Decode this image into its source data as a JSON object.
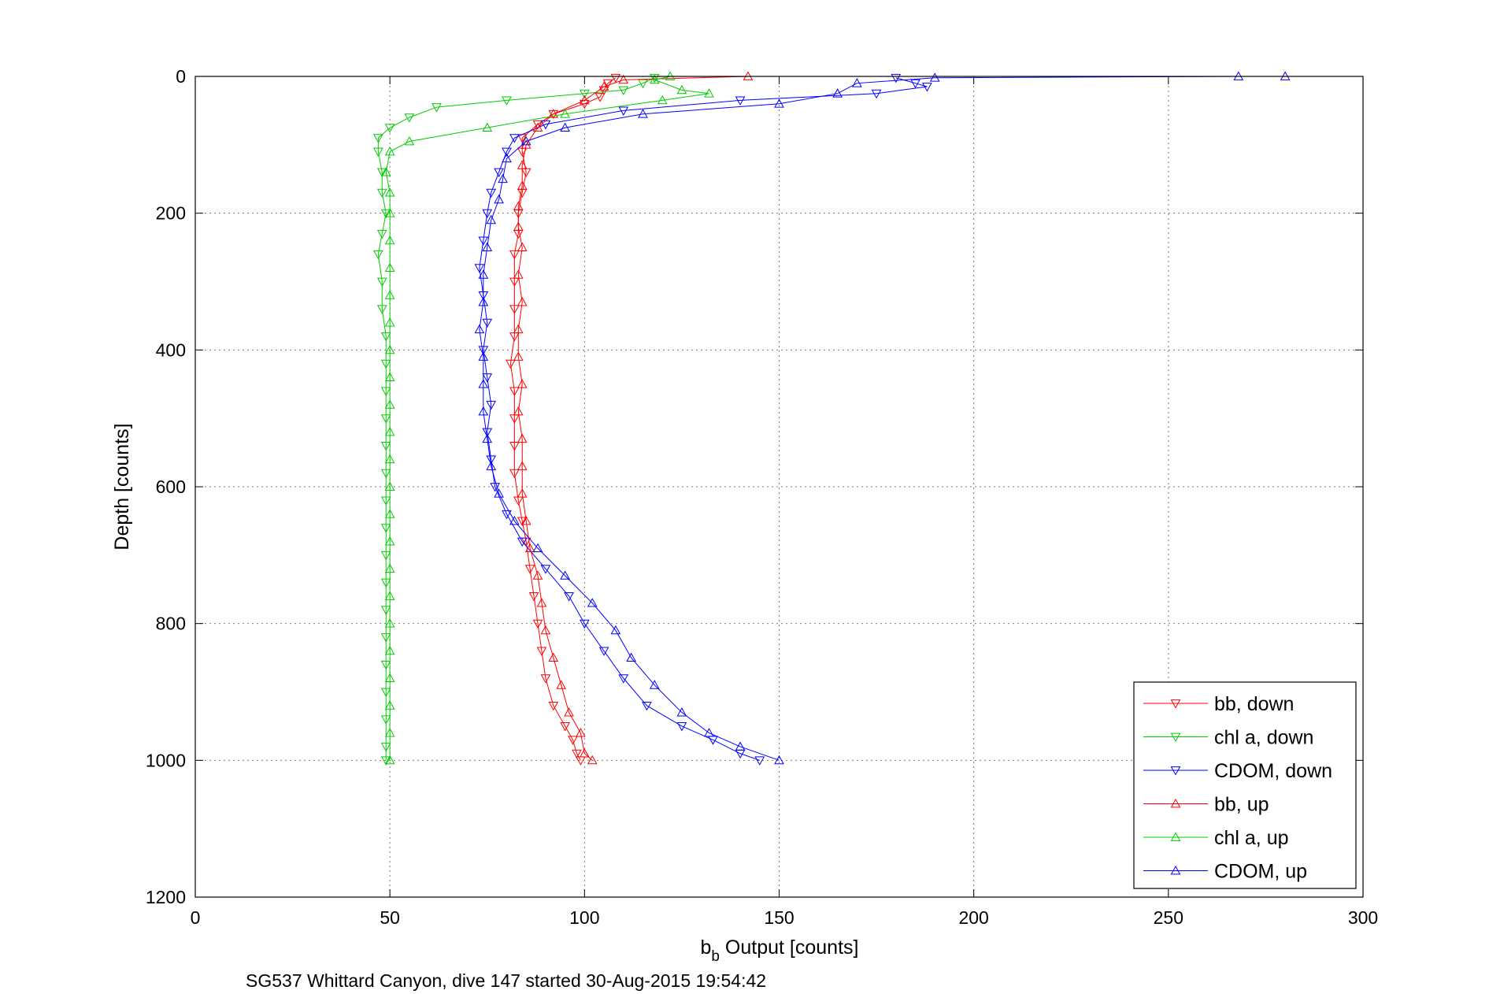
{
  "chart_data": {
    "type": "scatter",
    "xlabel_main": "b",
    "xlabel_sub": "b",
    "xlabel_rest": " Output [counts]",
    "ylabel": "Depth [counts]",
    "caption": "SG537 Whittard Canyon, dive 147 started 30-Aug-2015 19:54:42",
    "xlim": [
      0,
      300
    ],
    "ylim": [
      0,
      1200
    ],
    "y_reversed": true,
    "grid": true,
    "legend_position": "bottom-right",
    "x_ticks": [
      "0",
      "50",
      "100",
      "150",
      "200",
      "250",
      "300"
    ],
    "y_ticks": [
      "0",
      "200",
      "400",
      "600",
      "800",
      "1000",
      "1200"
    ],
    "series": [
      {
        "name": "bb, down",
        "color": "#ff0000",
        "marker": "triangle-down",
        "points": [
          [
            108,
            2
          ],
          [
            106,
            10
          ],
          [
            105,
            20
          ],
          [
            104,
            30
          ],
          [
            100,
            40
          ],
          [
            92,
            55
          ],
          [
            88,
            70
          ],
          [
            84,
            90
          ],
          [
            84,
            110
          ],
          [
            85,
            140
          ],
          [
            84,
            170
          ],
          [
            83,
            200
          ],
          [
            83,
            230
          ],
          [
            82,
            260
          ],
          [
            82,
            300
          ],
          [
            82,
            340
          ],
          [
            82,
            380
          ],
          [
            81,
            420
          ],
          [
            82,
            460
          ],
          [
            82,
            500
          ],
          [
            82,
            540
          ],
          [
            82,
            580
          ],
          [
            83,
            620
          ],
          [
            84,
            650
          ],
          [
            85,
            680
          ],
          [
            86,
            720
          ],
          [
            87,
            760
          ],
          [
            88,
            800
          ],
          [
            89,
            840
          ],
          [
            90,
            880
          ],
          [
            92,
            920
          ],
          [
            95,
            950
          ],
          [
            97,
            970
          ],
          [
            98,
            990
          ],
          [
            99,
            1000
          ]
        ]
      },
      {
        "name": "chl a, down",
        "color": "#00cc00",
        "marker": "triangle-down",
        "points": [
          [
            118,
            2
          ],
          [
            115,
            10
          ],
          [
            110,
            20
          ],
          [
            100,
            25
          ],
          [
            80,
            35
          ],
          [
            62,
            45
          ],
          [
            55,
            60
          ],
          [
            50,
            75
          ],
          [
            47,
            90
          ],
          [
            47,
            110
          ],
          [
            48,
            140
          ],
          [
            48,
            170
          ],
          [
            49,
            200
          ],
          [
            48,
            230
          ],
          [
            47,
            260
          ],
          [
            48,
            300
          ],
          [
            48,
            340
          ],
          [
            49,
            380
          ],
          [
            49,
            420
          ],
          [
            49,
            460
          ],
          [
            49,
            500
          ],
          [
            49,
            540
          ],
          [
            49,
            580
          ],
          [
            49,
            620
          ],
          [
            49,
            660
          ],
          [
            49,
            700
          ],
          [
            49,
            740
          ],
          [
            49,
            780
          ],
          [
            49,
            820
          ],
          [
            49,
            860
          ],
          [
            49,
            900
          ],
          [
            49,
            940
          ],
          [
            49,
            980
          ],
          [
            49,
            1000
          ]
        ]
      },
      {
        "name": "CDOM, down",
        "color": "#0000ff",
        "marker": "triangle-down",
        "points": [
          [
            180,
            2
          ],
          [
            185,
            10
          ],
          [
            188,
            15
          ],
          [
            175,
            25
          ],
          [
            140,
            35
          ],
          [
            110,
            50
          ],
          [
            90,
            70
          ],
          [
            82,
            90
          ],
          [
            80,
            110
          ],
          [
            78,
            140
          ],
          [
            76,
            170
          ],
          [
            75,
            200
          ],
          [
            74,
            240
          ],
          [
            73,
            280
          ],
          [
            74,
            320
          ],
          [
            75,
            360
          ],
          [
            74,
            400
          ],
          [
            75,
            440
          ],
          [
            76,
            480
          ],
          [
            75,
            520
          ],
          [
            76,
            560
          ],
          [
            77,
            600
          ],
          [
            80,
            640
          ],
          [
            84,
            680
          ],
          [
            90,
            720
          ],
          [
            96,
            760
          ],
          [
            100,
            800
          ],
          [
            105,
            840
          ],
          [
            110,
            880
          ],
          [
            116,
            920
          ],
          [
            125,
            950
          ],
          [
            133,
            970
          ],
          [
            140,
            990
          ],
          [
            145,
            1000
          ]
        ]
      },
      {
        "name": "bb, up",
        "color": "#ff0000",
        "marker": "triangle-up",
        "points": [
          [
            142,
            0
          ],
          [
            110,
            5
          ],
          [
            105,
            15
          ],
          [
            100,
            35
          ],
          [
            92,
            55
          ],
          [
            88,
            75
          ],
          [
            85,
            100
          ],
          [
            84,
            130
          ],
          [
            84,
            160
          ],
          [
            83,
            190
          ],
          [
            83,
            220
          ],
          [
            84,
            250
          ],
          [
            83,
            290
          ],
          [
            84,
            330
          ],
          [
            83,
            370
          ],
          [
            83,
            410
          ],
          [
            84,
            450
          ],
          [
            83,
            490
          ],
          [
            84,
            530
          ],
          [
            84,
            570
          ],
          [
            84,
            610
          ],
          [
            85,
            650
          ],
          [
            86,
            690
          ],
          [
            88,
            730
          ],
          [
            89,
            770
          ],
          [
            90,
            810
          ],
          [
            92,
            850
          ],
          [
            94,
            890
          ],
          [
            96,
            930
          ],
          [
            99,
            960
          ],
          [
            100,
            990
          ],
          [
            102,
            1000
          ]
        ]
      },
      {
        "name": "chl a, up",
        "color": "#00cc00",
        "marker": "triangle-up",
        "points": [
          [
            122,
            0
          ],
          [
            118,
            5
          ],
          [
            125,
            20
          ],
          [
            132,
            25
          ],
          [
            120,
            35
          ],
          [
            95,
            55
          ],
          [
            75,
            75
          ],
          [
            55,
            95
          ],
          [
            50,
            110
          ],
          [
            49,
            140
          ],
          [
            50,
            170
          ],
          [
            50,
            200
          ],
          [
            50,
            240
          ],
          [
            50,
            280
          ],
          [
            50,
            320
          ],
          [
            50,
            360
          ],
          [
            50,
            400
          ],
          [
            50,
            440
          ],
          [
            50,
            480
          ],
          [
            50,
            520
          ],
          [
            50,
            560
          ],
          [
            50,
            600
          ],
          [
            50,
            640
          ],
          [
            50,
            680
          ],
          [
            50,
            720
          ],
          [
            50,
            760
          ],
          [
            50,
            800
          ],
          [
            50,
            840
          ],
          [
            50,
            880
          ],
          [
            50,
            920
          ],
          [
            50,
            960
          ],
          [
            50,
            1000
          ]
        ]
      },
      {
        "name": "CDOM, up",
        "color": "#0000ff",
        "marker": "triangle-up",
        "points": [
          [
            280,
            0
          ],
          [
            268,
            0
          ],
          [
            190,
            2
          ],
          [
            170,
            10
          ],
          [
            165,
            25
          ],
          [
            150,
            40
          ],
          [
            115,
            55
          ],
          [
            95,
            75
          ],
          [
            85,
            95
          ],
          [
            80,
            120
          ],
          [
            79,
            150
          ],
          [
            78,
            180
          ],
          [
            76,
            210
          ],
          [
            75,
            250
          ],
          [
            74,
            290
          ],
          [
            74,
            330
          ],
          [
            73,
            370
          ],
          [
            74,
            410
          ],
          [
            74,
            450
          ],
          [
            74,
            490
          ],
          [
            75,
            530
          ],
          [
            76,
            570
          ],
          [
            78,
            610
          ],
          [
            82,
            650
          ],
          [
            88,
            690
          ],
          [
            95,
            730
          ],
          [
            102,
            770
          ],
          [
            108,
            810
          ],
          [
            112,
            850
          ],
          [
            118,
            890
          ],
          [
            125,
            930
          ],
          [
            132,
            960
          ],
          [
            140,
            980
          ],
          [
            150,
            1000
          ]
        ]
      }
    ]
  }
}
